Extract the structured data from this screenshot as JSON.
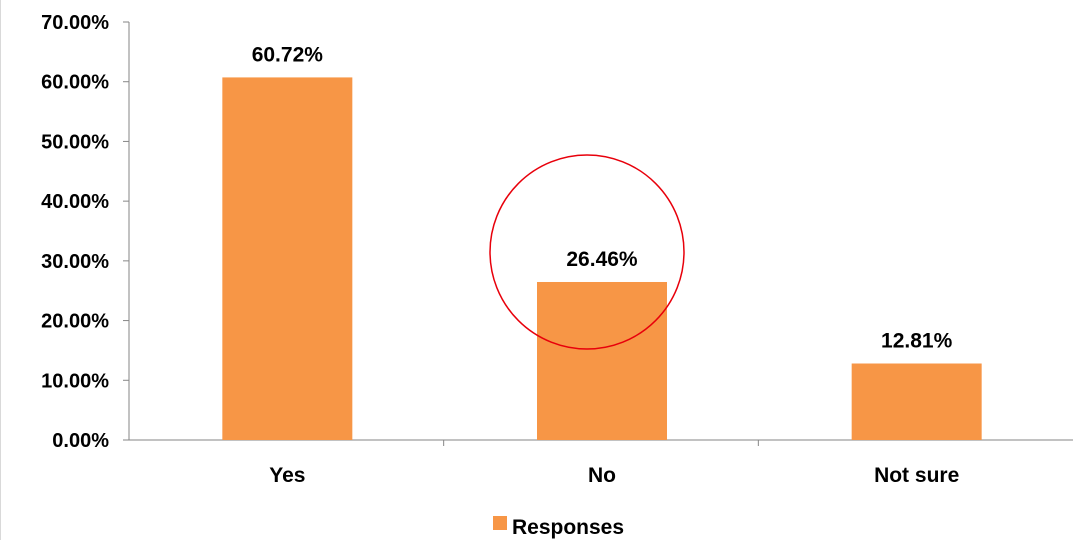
{
  "chart_data": {
    "type": "bar",
    "categories": [
      "Yes",
      "No",
      "Not sure"
    ],
    "series": [
      {
        "name": "Responses",
        "values": [
          60.72,
          26.46,
          12.81
        ],
        "color": "#F79646"
      }
    ],
    "data_labels": [
      "60.72%",
      "26.46%",
      "12.81%"
    ],
    "ylim": [
      0,
      70
    ],
    "yticks": [
      0,
      10,
      20,
      30,
      40,
      50,
      60,
      70
    ],
    "ytick_labels": [
      "0.00%",
      "10.00%",
      "20.00%",
      "30.00%",
      "40.00%",
      "50.00%",
      "60.00%",
      "70.00%"
    ],
    "legend": {
      "position": "bottom",
      "label": "Responses"
    },
    "grid": false,
    "annotation": {
      "shape": "circle",
      "color": "#E8000B",
      "highlights_category": "No"
    },
    "title": "",
    "xlabel": "",
    "ylabel": ""
  }
}
